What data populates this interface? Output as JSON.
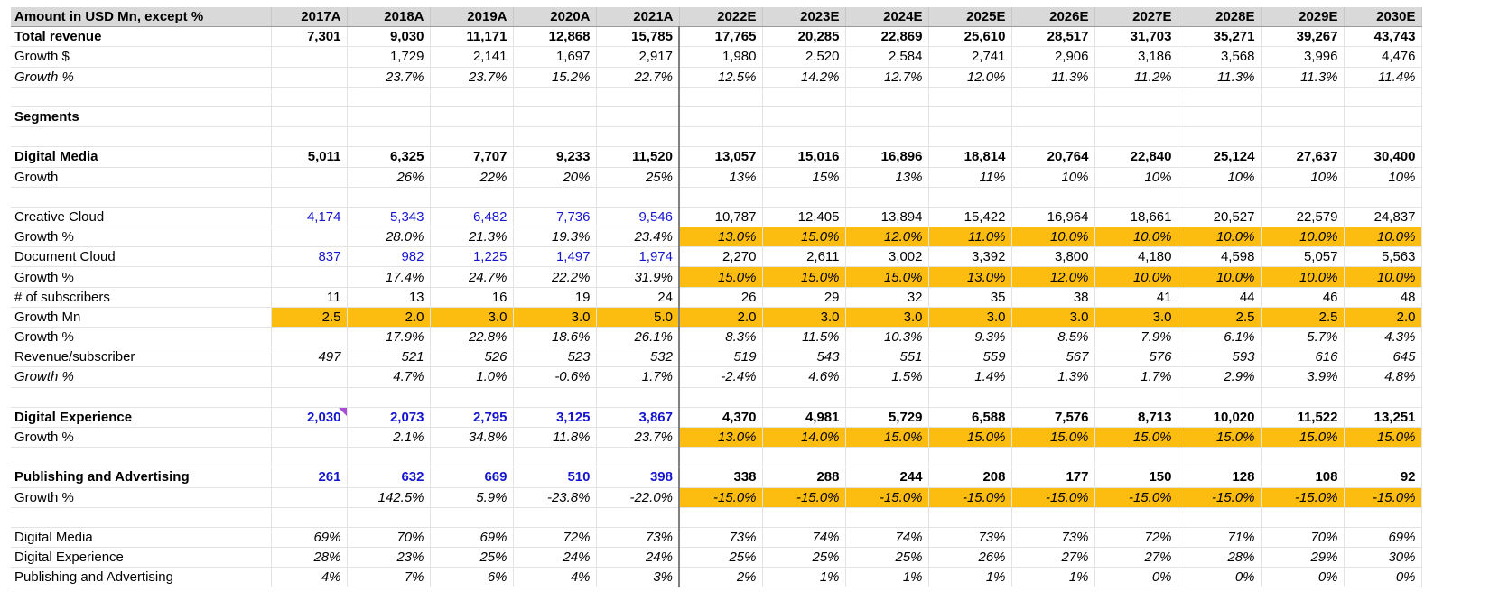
{
  "header": {
    "label": "Amount in USD Mn, except %",
    "years": [
      "2017A",
      "2018A",
      "2019A",
      "2020A",
      "2021A",
      "2022E",
      "2023E",
      "2024E",
      "2025E",
      "2026E",
      "2027E",
      "2028E",
      "2029E",
      "2030E"
    ]
  },
  "rows": [
    {
      "label": "Total revenue",
      "bold": true,
      "values": [
        "7,301",
        "9,030",
        "11,171",
        "12,868",
        "15,785",
        "17,765",
        "20,285",
        "22,869",
        "25,610",
        "28,517",
        "31,703",
        "35,271",
        "39,267",
        "43,743"
      ]
    },
    {
      "label": "Growth $",
      "values": [
        "",
        "1,729",
        "2,141",
        "1,697",
        "2,917",
        "1,980",
        "2,520",
        "2,584",
        "2,741",
        "2,906",
        "3,186",
        "3,568",
        "3,996",
        "4,476"
      ]
    },
    {
      "label": "Growth %",
      "italic_label": true,
      "italic": true,
      "values": [
        "",
        "23.7%",
        "23.7%",
        "15.2%",
        "22.7%",
        "12.5%",
        "14.2%",
        "12.7%",
        "12.0%",
        "11.3%",
        "11.2%",
        "11.3%",
        "11.3%",
        "11.4%"
      ]
    },
    {
      "blank": true
    },
    {
      "label": "Segments",
      "bold": true,
      "values": []
    },
    {
      "blank": true
    },
    {
      "label": "Digital Media",
      "bold": true,
      "values": [
        "5,011",
        "6,325",
        "7,707",
        "9,233",
        "11,520",
        "13,057",
        "15,016",
        "16,896",
        "18,814",
        "20,764",
        "22,840",
        "25,124",
        "27,637",
        "30,400"
      ]
    },
    {
      "label": "Growth",
      "italic": true,
      "values": [
        "",
        "26%",
        "22%",
        "20%",
        "25%",
        "13%",
        "15%",
        "13%",
        "11%",
        "10%",
        "10%",
        "10%",
        "10%",
        "10%"
      ]
    },
    {
      "blank": true
    },
    {
      "label": "Creative Cloud",
      "blue_hist": true,
      "values": [
        "4,174",
        "5,343",
        "6,482",
        "7,736",
        "9,546",
        "10,787",
        "12,405",
        "13,894",
        "15,422",
        "16,964",
        "18,661",
        "20,527",
        "22,579",
        "24,837"
      ]
    },
    {
      "label": "Growth %",
      "italic": true,
      "hl_fore": true,
      "values": [
        "",
        "28.0%",
        "21.3%",
        "19.3%",
        "23.4%",
        "13.0%",
        "15.0%",
        "12.0%",
        "11.0%",
        "10.0%",
        "10.0%",
        "10.0%",
        "10.0%",
        "10.0%"
      ]
    },
    {
      "label": "Document Cloud",
      "blue_hist": true,
      "values": [
        "837",
        "982",
        "1,225",
        "1,497",
        "1,974",
        "2,270",
        "2,611",
        "3,002",
        "3,392",
        "3,800",
        "4,180",
        "4,598",
        "5,057",
        "5,563"
      ]
    },
    {
      "label": "Growth %",
      "italic": true,
      "hl_fore": true,
      "values": [
        "",
        "17.4%",
        "24.7%",
        "22.2%",
        "31.9%",
        "15.0%",
        "15.0%",
        "15.0%",
        "13.0%",
        "12.0%",
        "10.0%",
        "10.0%",
        "10.0%",
        "10.0%"
      ]
    },
    {
      "label": "# of subscribers",
      "values": [
        "11",
        "13",
        "16",
        "19",
        "24",
        "26",
        "29",
        "32",
        "35",
        "38",
        "41",
        "44",
        "46",
        "48"
      ]
    },
    {
      "label": "Growth Mn",
      "hl_all": true,
      "values": [
        "2.5",
        "2.0",
        "3.0",
        "3.0",
        "5.0",
        "2.0",
        "3.0",
        "3.0",
        "3.0",
        "3.0",
        "3.0",
        "2.5",
        "2.5",
        "2.0"
      ]
    },
    {
      "label": "Growth %",
      "italic": true,
      "values": [
        "",
        "17.9%",
        "22.8%",
        "18.6%",
        "26.1%",
        "8.3%",
        "11.5%",
        "10.3%",
        "9.3%",
        "8.5%",
        "7.9%",
        "6.1%",
        "5.7%",
        "4.3%"
      ]
    },
    {
      "label": "Revenue/subscriber",
      "italic": true,
      "values": [
        "497",
        "521",
        "526",
        "523",
        "532",
        "519",
        "543",
        "551",
        "559",
        "567",
        "576",
        "593",
        "616",
        "645"
      ]
    },
    {
      "label": "Growth %",
      "italic_label": true,
      "italic": true,
      "values": [
        "",
        "4.7%",
        "1.0%",
        "-0.6%",
        "1.7%",
        "-2.4%",
        "4.6%",
        "1.5%",
        "1.4%",
        "1.3%",
        "1.7%",
        "2.9%",
        "3.9%",
        "4.8%"
      ]
    },
    {
      "blank": true
    },
    {
      "label": "Digital Experience",
      "bold": true,
      "blue_hist": true,
      "note_first": true,
      "values": [
        "2,030",
        "2,073",
        "2,795",
        "3,125",
        "3,867",
        "4,370",
        "4,981",
        "5,729",
        "6,588",
        "7,576",
        "8,713",
        "10,020",
        "11,522",
        "13,251"
      ]
    },
    {
      "label": "Growth %",
      "italic": true,
      "hl_fore": true,
      "values": [
        "",
        "2.1%",
        "34.8%",
        "11.8%",
        "23.7%",
        "13.0%",
        "14.0%",
        "15.0%",
        "15.0%",
        "15.0%",
        "15.0%",
        "15.0%",
        "15.0%",
        "15.0%"
      ]
    },
    {
      "blank": true
    },
    {
      "label": "Publishing and Advertising",
      "bold": true,
      "blue_hist": true,
      "values": [
        "261",
        "632",
        "669",
        "510",
        "398",
        "338",
        "288",
        "244",
        "208",
        "177",
        "150",
        "128",
        "108",
        "92"
      ]
    },
    {
      "label": "Growth %",
      "italic": true,
      "hl_fore": true,
      "values": [
        "",
        "142.5%",
        "5.9%",
        "-23.8%",
        "-22.0%",
        "-15.0%",
        "-15.0%",
        "-15.0%",
        "-15.0%",
        "-15.0%",
        "-15.0%",
        "-15.0%",
        "-15.0%",
        "-15.0%"
      ]
    },
    {
      "blank": true
    },
    {
      "label": "Digital Media",
      "italic": true,
      "values": [
        "69%",
        "70%",
        "69%",
        "72%",
        "73%",
        "73%",
        "74%",
        "74%",
        "73%",
        "73%",
        "72%",
        "71%",
        "70%",
        "69%"
      ]
    },
    {
      "label": "Digital Experience",
      "italic": true,
      "values": [
        "28%",
        "23%",
        "25%",
        "24%",
        "24%",
        "25%",
        "25%",
        "25%",
        "26%",
        "27%",
        "27%",
        "28%",
        "29%",
        "30%"
      ]
    },
    {
      "label": "Publishing and Advertising",
      "italic": true,
      "values": [
        "4%",
        "7%",
        "6%",
        "4%",
        "3%",
        "2%",
        "1%",
        "1%",
        "1%",
        "1%",
        "0%",
        "0%",
        "0%",
        "0%"
      ]
    }
  ],
  "colors": {
    "highlight": "#fdbd10",
    "input_blue": "#1515d0",
    "header_bg": "#d9d9d9"
  }
}
